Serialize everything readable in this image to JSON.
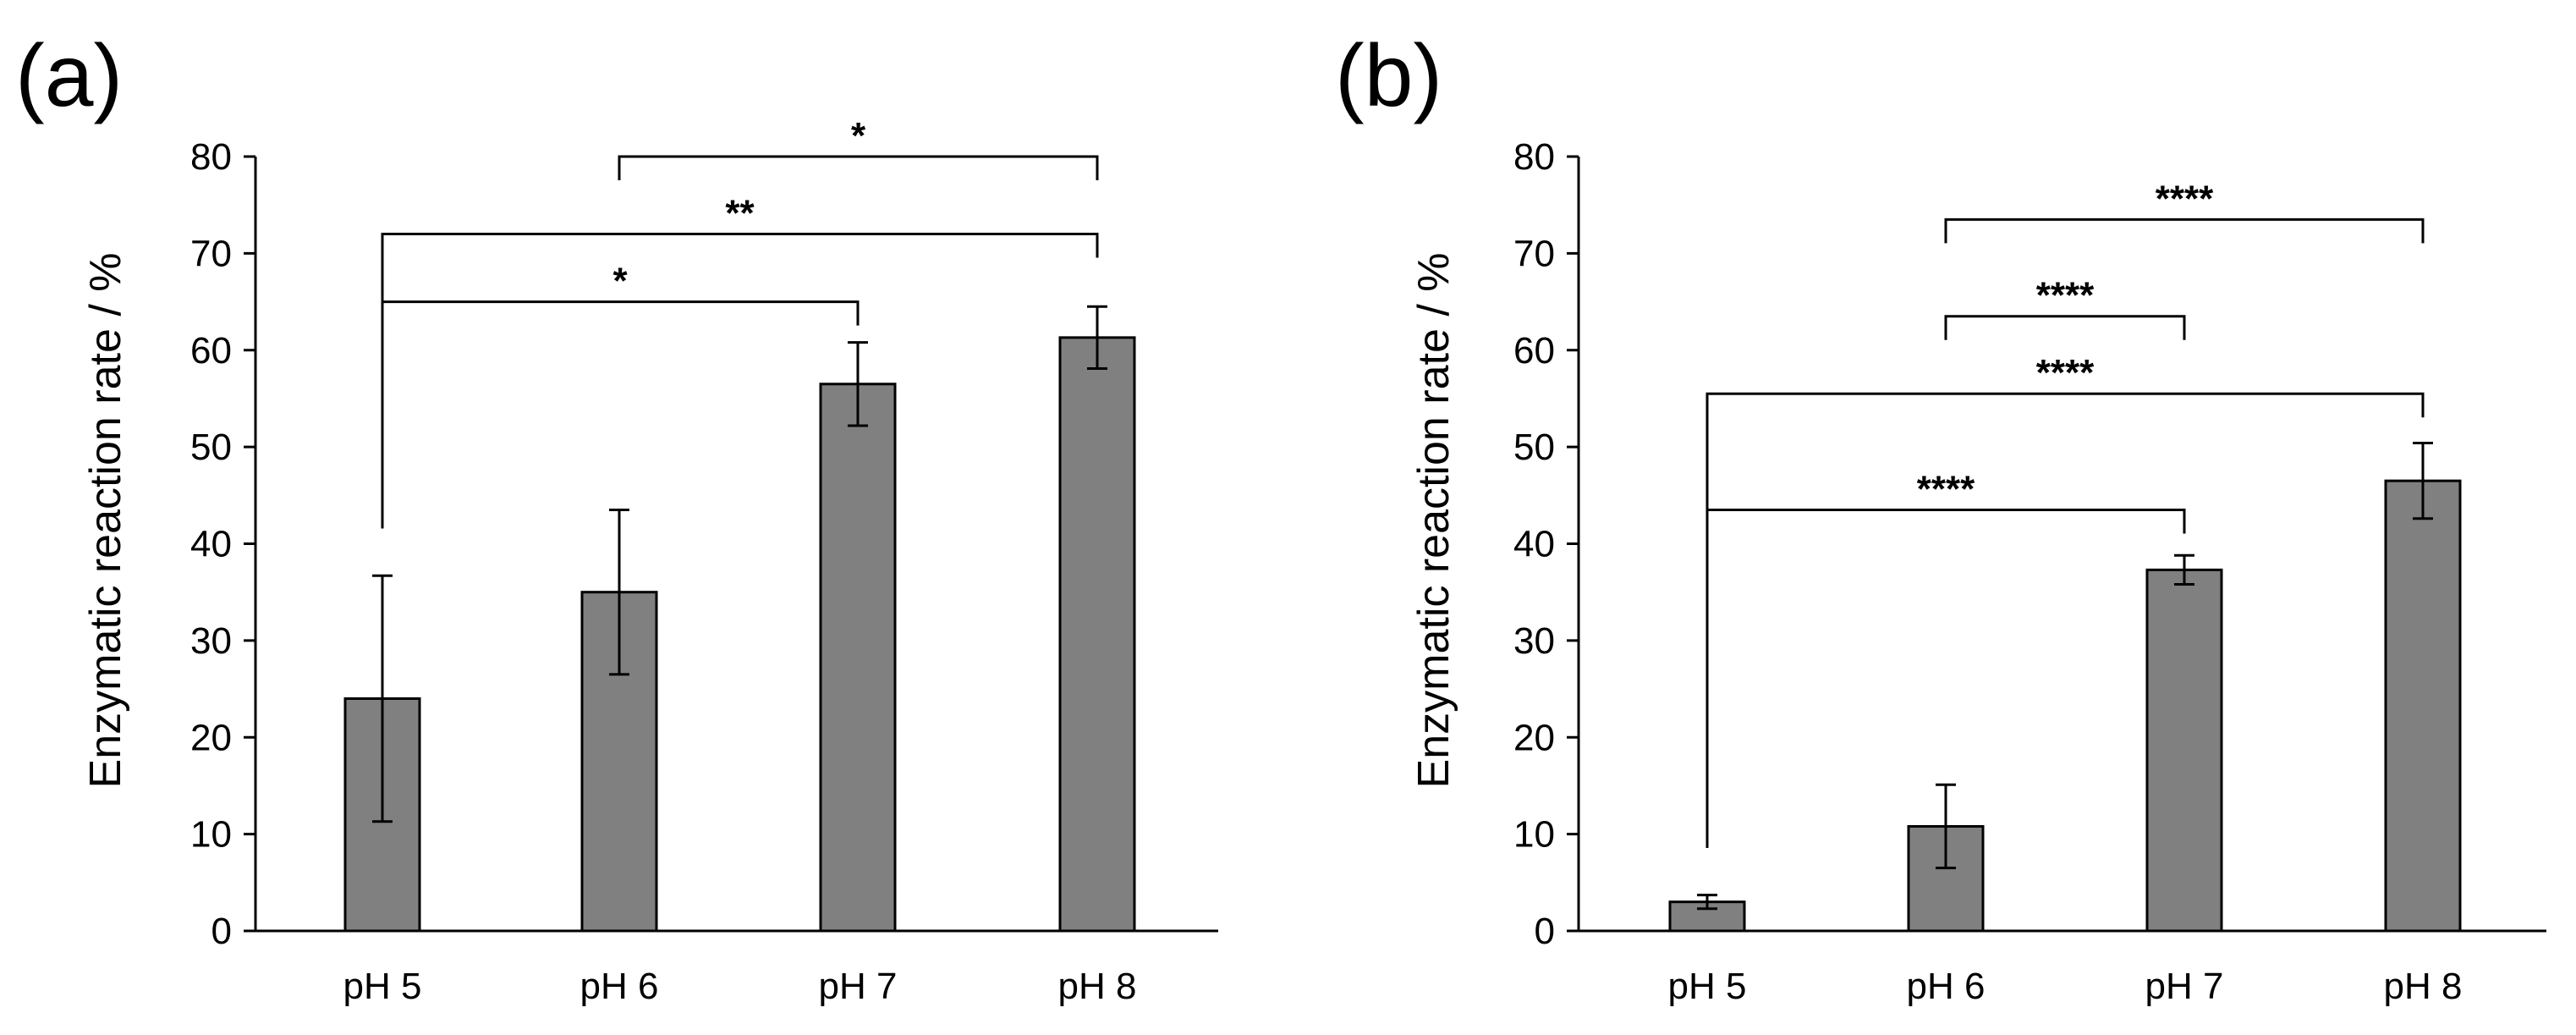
{
  "chart_data": [
    {
      "panel_label": "(a)",
      "type": "bar",
      "ylabel": "Enzymatic reaction rate / %",
      "xlabel": "",
      "ylim": [
        0,
        80
      ],
      "yticks": [
        "0",
        "10",
        "20",
        "30",
        "40",
        "50",
        "60",
        "70",
        "80"
      ],
      "categories": [
        "pH 5",
        "pH 6",
        "pH 7",
        "pH 8"
      ],
      "values": [
        24,
        35,
        56.5,
        61.3
      ],
      "errors": [
        12.7,
        8.5,
        4.3,
        3.2
      ],
      "significance": [
        {
          "from": 0,
          "to": 2,
          "y": 65,
          "label": "*"
        },
        {
          "from": 0,
          "to": 3,
          "y": 72,
          "label": "**"
        },
        {
          "from": 1,
          "to": 3,
          "y": 80,
          "label": "*"
        }
      ]
    },
    {
      "panel_label": "(b)",
      "type": "bar",
      "ylabel": "Enzymatic reaction rate / %",
      "xlabel": "",
      "ylim": [
        0,
        80
      ],
      "yticks": [
        "0",
        "10",
        "20",
        "30",
        "40",
        "50",
        "60",
        "70",
        "80"
      ],
      "categories": [
        "pH 5",
        "pH 6",
        "pH 7",
        "pH 8"
      ],
      "values": [
        3,
        10.8,
        37.3,
        46.5
      ],
      "errors": [
        0.7,
        4.3,
        1.5,
        3.9
      ],
      "significance": [
        {
          "from": 0,
          "to": 2,
          "y": 43.5,
          "label": "****"
        },
        {
          "from": 0,
          "to": 3,
          "y": 55.5,
          "label": "****"
        },
        {
          "from": 1,
          "to": 2,
          "y": 63.5,
          "label": "****"
        },
        {
          "from": 1,
          "to": 3,
          "y": 73.5,
          "label": "****"
        }
      ]
    }
  ]
}
